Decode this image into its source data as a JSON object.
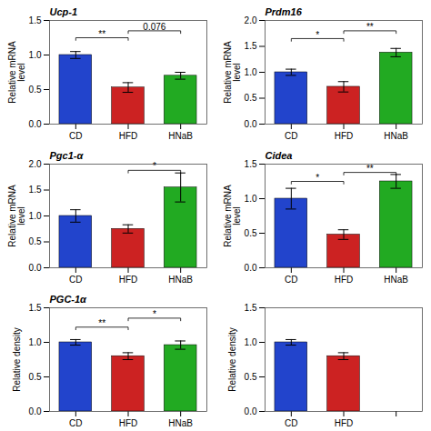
{
  "chart_data": [
    {
      "type": "bar",
      "title": "Ucp-1",
      "categories": [
        "CD",
        "HFD",
        "HNaB"
      ],
      "values": [
        1.0,
        0.53,
        0.7
      ],
      "errors": [
        0.05,
        0.07,
        0.05
      ],
      "colors": [
        "#2244cc",
        "#cc2222",
        "#22aa22"
      ],
      "ylim": [
        0.0,
        1.5
      ],
      "yticks": [
        {
          "value": 0.0,
          "label": "0.0"
        },
        0.5,
        {
          "value": 1.0,
          "label": "1.0"
        },
        1.5
      ],
      "ylabel": "Relative mRNA\nlevel",
      "annotations": [
        {
          "x1": "CD",
          "x2": "HFD",
          "y": 1.25,
          "label": "**"
        },
        {
          "x1": "HFD",
          "x2": "HNaB",
          "y": 1.35,
          "label": "0.076"
        }
      ]
    },
    {
      "type": "bar",
      "title": "Prdm16",
      "categories": [
        "CD",
        "HFD",
        "HNaB"
      ],
      "values": [
        1.0,
        0.72,
        1.38
      ],
      "errors": [
        0.06,
        0.1,
        0.08
      ],
      "colors": [
        "#2244cc",
        "#cc2222",
        "#22aa22"
      ],
      "ylim": [
        0.0,
        2.0
      ],
      "yticks": [
        {
          "value": 0.0,
          "label": "0.0"
        },
        0.5,
        {
          "value": 1.0,
          "label": "1.0"
        },
        1.5,
        {
          "value": 2.0,
          "label": "2.0"
        }
      ],
      "ylabel": "Relative mRNA\nlevel",
      "annotations": [
        {
          "x1": "CD",
          "x2": "HFD",
          "y": 1.65,
          "label": "*"
        },
        {
          "x1": "HFD",
          "x2": "HNaB",
          "y": 1.8,
          "label": "**"
        }
      ]
    },
    {
      "type": "bar",
      "title": "Pgc1-α",
      "categories": [
        "CD",
        "HFD",
        "HNaB"
      ],
      "values": [
        1.0,
        0.75,
        1.55
      ],
      "errors": [
        0.12,
        0.08,
        0.28
      ],
      "colors": [
        "#2244cc",
        "#cc2222",
        "#22aa22"
      ],
      "ylim": [
        0.0,
        2.0
      ],
      "yticks": [
        {
          "value": 0.0,
          "label": "0.0"
        },
        0.5,
        {
          "value": 1.0,
          "label": "1.0"
        },
        1.5,
        {
          "value": 2.0,
          "label": "2.0"
        }
      ],
      "ylabel": "Relative mRNA\nlevel",
      "annotations": [
        {
          "x1": "HFD",
          "x2": "HNaB",
          "y": 1.88,
          "label": "*"
        }
      ]
    },
    {
      "type": "bar",
      "title": "Cidea",
      "categories": [
        "CD",
        "HFD",
        "HNaB"
      ],
      "values": [
        1.0,
        0.48,
        1.25
      ],
      "errors": [
        0.15,
        0.07,
        0.1
      ],
      "colors": [
        "#2244cc",
        "#cc2222",
        "#22aa22"
      ],
      "ylim": [
        0.0,
        1.5
      ],
      "yticks": [
        {
          "value": 0.0,
          "label": "0.0"
        },
        0.5,
        {
          "value": 1.0,
          "label": "1.0"
        },
        1.5
      ],
      "ylabel": "Relative mRNA\nlevel",
      "annotations": [
        {
          "x1": "CD",
          "x2": "HFD",
          "y": 1.25,
          "label": "*"
        },
        {
          "x1": "HFD",
          "x2": "HNaB",
          "y": 1.38,
          "label": "**"
        }
      ]
    },
    {
      "type": "bar",
      "title": "PGC-1α",
      "categories": [
        "CD",
        "HFD",
        "HNaB"
      ],
      "values": [
        1.0,
        0.8,
        0.96
      ],
      "errors": [
        0.04,
        0.05,
        0.06
      ],
      "colors": [
        "#2244cc",
        "#cc2222",
        "#22aa22"
      ],
      "ylim": [
        0.0,
        1.5
      ],
      "yticks": [
        {
          "value": 0.0,
          "label": "0.0"
        },
        0.5,
        {
          "value": 1.0,
          "label": "1.0"
        },
        1.5
      ],
      "ylabel": "Relative density",
      "annotations": [
        {
          "x1": "CD",
          "x2": "HFD",
          "y": 1.22,
          "label": "**"
        },
        {
          "x1": "HFD",
          "x2": "HNaB",
          "y": 1.35,
          "label": "*"
        }
      ]
    },
    {
      "type": "bar",
      "categories": [
        "CD",
        "HFD",
        null
      ],
      "values": [
        1.0,
        0.8,
        null
      ],
      "errors": [
        0.04,
        0.05,
        null
      ],
      "colors": [
        "#2244cc",
        "#cc2222",
        null
      ],
      "ylim": [
        0.0,
        1.5
      ],
      "yticks": [
        {
          "value": 0.0,
          "label": "0.0"
        },
        0.5,
        {
          "value": 1.0,
          "label": "1.0"
        },
        1.5
      ],
      "ylabel": "Relative density"
    }
  ]
}
